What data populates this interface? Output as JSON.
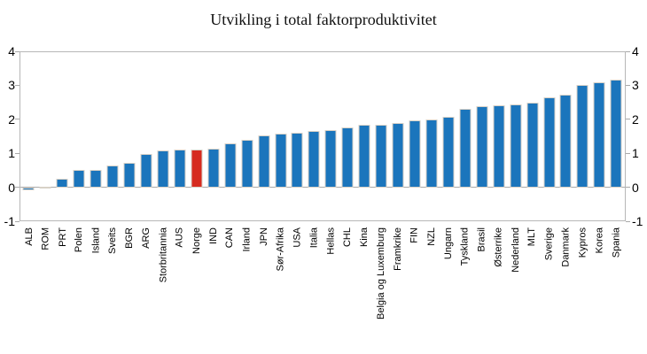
{
  "title": "Utvikling i total faktorproduktivitet",
  "chart_data": {
    "type": "bar",
    "title": "Utvikling i total faktorproduktivitet",
    "xlabel": "",
    "ylabel": "",
    "ylim": [
      -1,
      4
    ],
    "yticks": [
      4,
      3,
      2,
      1,
      0,
      -1
    ],
    "grid": false,
    "legend": "none",
    "ytick_sides": "both",
    "bar_color": "#1b75bc",
    "highlight_color": "#d62b1f",
    "axis_color": "#b7b7b7",
    "highlight_category": "Norge",
    "highlight_index": 10,
    "categories": [
      "ALB",
      "ROM",
      "PRT",
      "Polen",
      "Island",
      "Sveits",
      "BGR",
      "ARG",
      "Storbritannia",
      "AUS",
      "Norge",
      "IND",
      "CAN",
      "Irland",
      "JPN",
      "Sør-Afrika",
      "USA",
      "Italia",
      "Hellas",
      "CHL",
      "Kina",
      "Belgia og Luxemburg",
      "Framkrike",
      "FIN",
      "NZL",
      "Ungarn",
      "Tyskland",
      "Brasil",
      "Østerrike",
      "Nederland",
      "MLT",
      "Sverige",
      "Danmark",
      "Kypros",
      "Korea",
      "Spania"
    ],
    "values": [
      -0.08,
      0.02,
      0.25,
      0.51,
      0.52,
      0.64,
      0.73,
      0.97,
      1.08,
      1.1,
      1.12,
      1.14,
      1.3,
      1.4,
      1.54,
      1.58,
      1.6,
      1.65,
      1.68,
      1.75,
      1.83,
      1.85,
      1.9,
      1.97,
      1.99,
      2.08,
      2.31,
      2.39,
      2.4,
      2.45,
      2.49,
      2.65,
      2.72,
      3.02,
      3.08,
      3.17
    ]
  }
}
